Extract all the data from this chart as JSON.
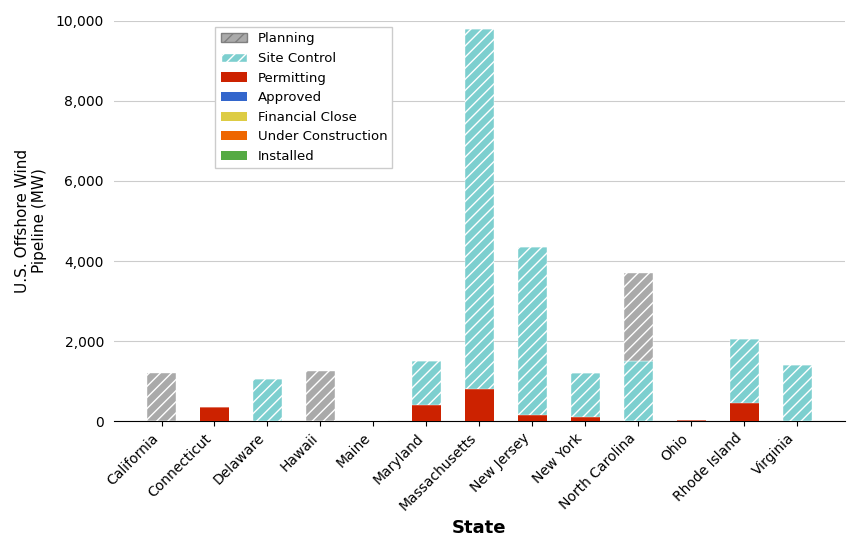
{
  "states": [
    "California",
    "Connecticut",
    "Delaware",
    "Hawaii",
    "Maine",
    "Maryland",
    "Massachusetts",
    "New Jersey",
    "New York",
    "North Carolina",
    "Ohio",
    "Rhode Island",
    "Virginia"
  ],
  "planning": [
    1200,
    0,
    0,
    1250,
    0,
    0,
    0,
    0,
    0,
    2200,
    0,
    0,
    0
  ],
  "site_control": [
    0,
    0,
    1050,
    0,
    0,
    1100,
    9000,
    4200,
    1100,
    1500,
    0,
    1600,
    1400
  ],
  "permitting": [
    0,
    350,
    0,
    0,
    0,
    400,
    800,
    150,
    100,
    0,
    30,
    450,
    0
  ],
  "approved": [
    0,
    0,
    0,
    0,
    0,
    0,
    0,
    0,
    0,
    0,
    0,
    0,
    0
  ],
  "financial_close": [
    0,
    0,
    0,
    0,
    0,
    0,
    0,
    0,
    0,
    0,
    0,
    0,
    0
  ],
  "under_construction": [
    0,
    0,
    0,
    0,
    0,
    0,
    0,
    0,
    0,
    0,
    0,
    0,
    0
  ],
  "installed": [
    0,
    0,
    0,
    0,
    0,
    0,
    0,
    0,
    0,
    0,
    0,
    0,
    0
  ],
  "colors": {
    "planning": "#aaaaaa",
    "site_control": "#7dcfcf",
    "permitting": "#cc2200",
    "approved": "#3366cc",
    "financial_close": "#ddcc44",
    "under_construction": "#ee6600",
    "installed": "#55aa44"
  },
  "ylabel": "U.S. Offshore Wind\nPipeline (MW)",
  "xlabel": "State",
  "ylim": [
    0,
    10000
  ],
  "yticks": [
    0,
    2000,
    4000,
    6000,
    8000,
    10000
  ],
  "background_color": "#ffffff",
  "bar_width": 0.55
}
